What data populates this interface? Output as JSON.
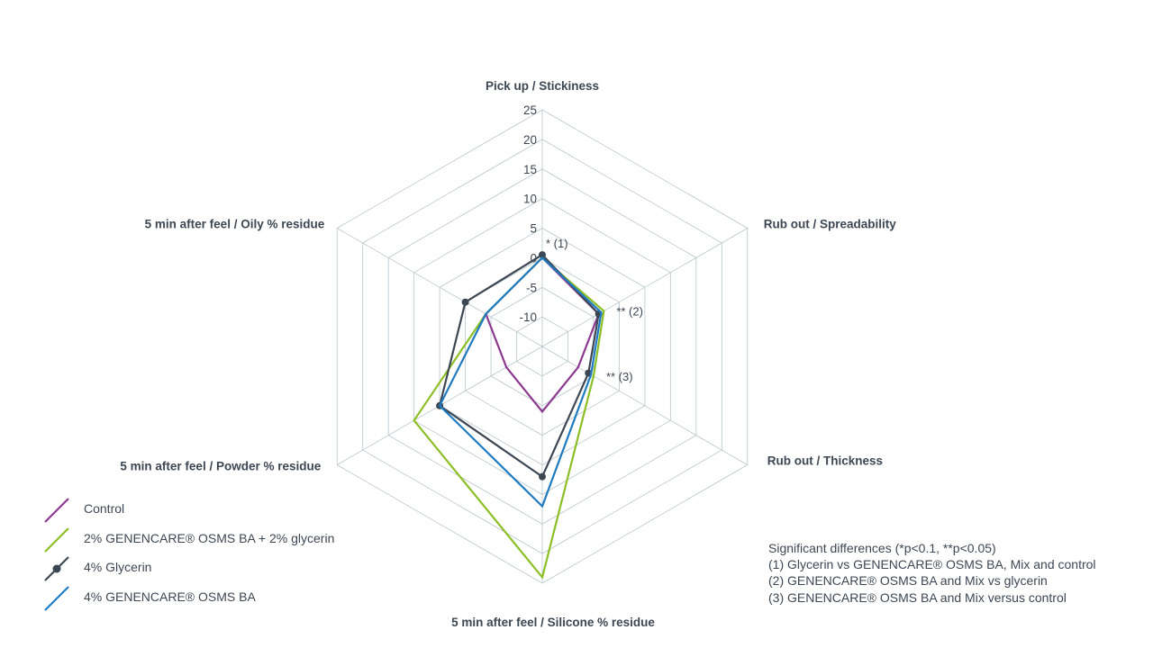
{
  "chart_data": {
    "type": "radar",
    "axes": [
      "Pick up / Stickiness",
      "Rub out / Spreadability",
      "Rub out / Thickness",
      "5 min after feel / Silicone % residue",
      "5 min after feel / Powder % residue",
      "5 min after feel / Oily % residue"
    ],
    "rlim": [
      -15,
      25
    ],
    "ticks": [
      25,
      20,
      15,
      10,
      5,
      0,
      -5,
      -10
    ],
    "tick_labels": [
      "25",
      "20",
      "15",
      "10",
      "5",
      "0",
      "-5",
      "-10"
    ],
    "grid": true,
    "series": [
      {
        "name": "Control",
        "color": "#8b3a8f",
        "marker": false,
        "values": [
          0,
          -4,
          -8,
          -4,
          -8,
          -4
        ]
      },
      {
        "name": "2% GENENCARE® OSMS BA + 2% glycerin",
        "color": "#8cbf26",
        "marker": false,
        "values": [
          0,
          -3,
          -5,
          24,
          10,
          -4
        ]
      },
      {
        "name": "4% Glycerin",
        "color": "#3d4753",
        "marker": true,
        "values": [
          0.5,
          -4,
          -6,
          7,
          5,
          0
        ]
      },
      {
        "name": "4% GENENCARE® OSMS BA",
        "color": "#1f7bc1",
        "marker": false,
        "values": [
          0,
          -3.5,
          -5.5,
          12,
          5,
          -4
        ]
      }
    ],
    "annotations": [
      {
        "axis": 0,
        "text": "* (1)"
      },
      {
        "axis": 1,
        "text": "** (2)"
      },
      {
        "axis": 2,
        "text": "** (3)"
      }
    ],
    "legend_position": "bottom-left"
  },
  "notes": [
    "Significant differences (*p<0.1, **p<0.05)",
    "(1) Glycerin vs GENENCARE® OSMS BA, Mix and control",
    "(2) GENENCARE® OSMS BA and Mix vs glycerin",
    "(3) GENENCARE® OSMS BA and Mix versus control"
  ]
}
